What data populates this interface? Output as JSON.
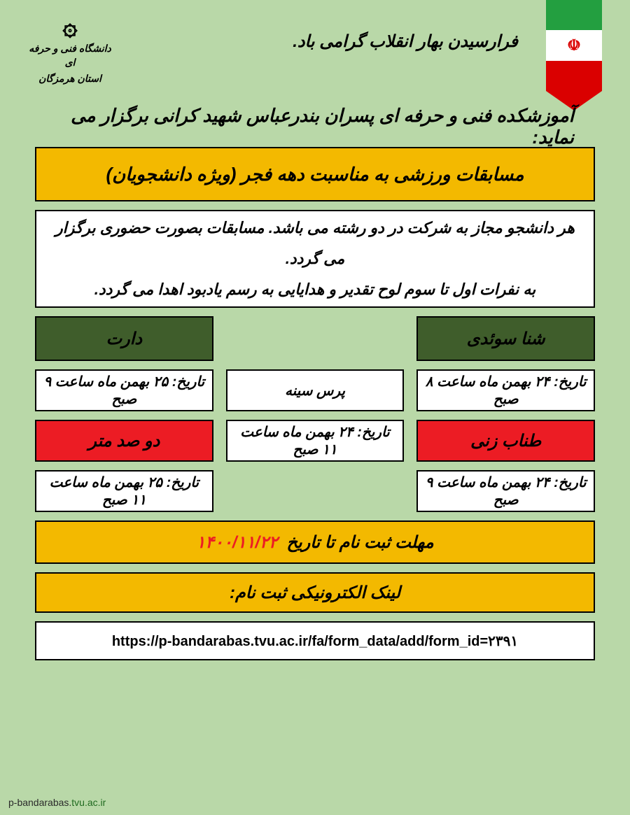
{
  "colors": {
    "page_bg": "#b9d8a8",
    "yellow": "#f3b900",
    "white": "#ffffff",
    "dark_green": "#3f5d2b",
    "red": "#ec1c24",
    "black": "#000000"
  },
  "header": {
    "greeting": "فرارسیدن بهار انقلاب گرامی باد.",
    "university_line1": "دانشگاه فنی و حرفه ای",
    "university_line2": "استان هرمزگان",
    "subtitle": "آموزشکده فنی و حرفه ای پسران بندرعباس شهید کرانی برگزار می نماید:"
  },
  "title_band": "مسابقات ورزشی به مناسبت دهه فجر (ویژه دانشجویان)",
  "info": {
    "line1": "هر دانشجو مجاز به شرکت در دو رشته می باشد.   مسابقات بصورت حضوری برگزار می گردد.",
    "line2": "به نفرات اول تا سوم لوح تقدیر و هدایایی به رسم یادبود اهدا می گردد."
  },
  "sports": {
    "col_right": {
      "header": "شنا سوئدی",
      "date1": "تاریخ: ۲۴ بهمن ماه ساعت ۸ صبح",
      "mid": "طناب زنی",
      "date2": "تاریخ: ۲۴ بهمن ماه ساعت ۹ صبح"
    },
    "col_mid": {
      "header": "پرس سینه",
      "date": "تاریخ: ۲۴ بهمن ماه ساعت ۱۱ صبح"
    },
    "col_left": {
      "header": "دارت",
      "date1": "تاریخ: ۲۵ بهمن ماه ساعت ۹ صبح",
      "mid": "دو صد متر",
      "date2": "تاریخ: ۲۵ بهمن ماه ساعت ۱۱ صبح"
    }
  },
  "deadline": {
    "label": "مهلت ثبت نام تا تاریخ",
    "date": "۱۴۰۰/۱۱/۲۲"
  },
  "link_label": "لینک الکترونیکی ثبت نام:",
  "link_url": "https://p-bandarabas.tvu.ac.ir/fa/form_data/add/form_id=۲۳۹۱",
  "footer": {
    "part1": "p-bandarabas.",
    "part2": "tvu.ac.ir"
  }
}
